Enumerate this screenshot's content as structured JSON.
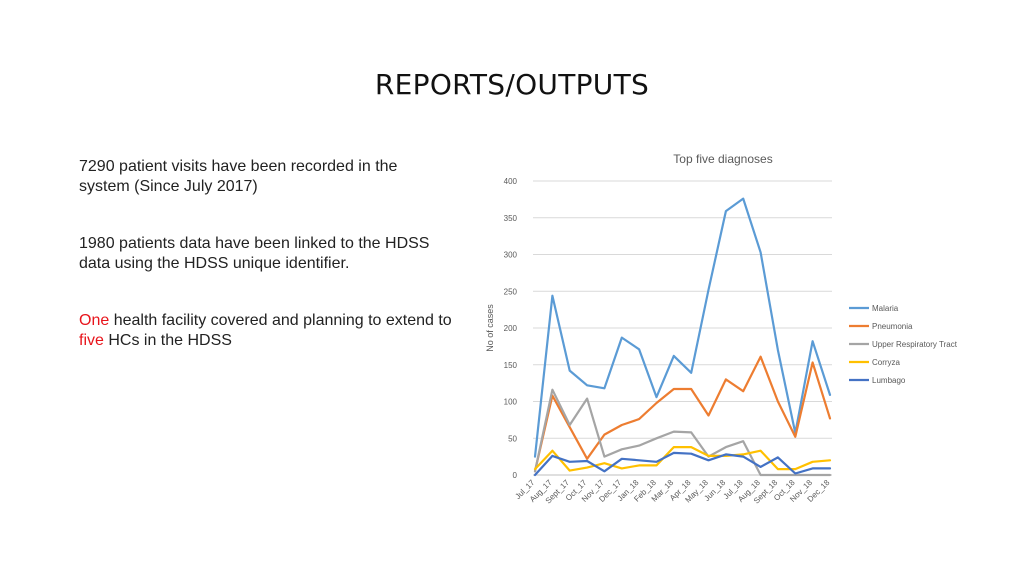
{
  "slide": {
    "title": "REPORTS/OUTPUTS"
  },
  "paragraphs": [
    {
      "parts": [
        {
          "text": "7290 patient visits have been recorded in the system (Since July 2017)"
        }
      ]
    },
    {
      "parts": [
        {
          "text": "1980 patients data have been linked to the HDSS data using the HDSS unique identifier."
        }
      ]
    },
    {
      "parts": [
        {
          "text": "One",
          "highlight": true
        },
        {
          "text": " health facility covered and planning to extend to "
        },
        {
          "text": "five",
          "highlight": true
        },
        {
          "text": " HCs in the HDSS"
        }
      ]
    }
  ],
  "colors": {
    "highlight": "#e8141b"
  },
  "chart_data": {
    "type": "line",
    "title": "Top five diagnoses",
    "xlabel": "",
    "ylabel": "No of cases",
    "ylim": [
      0,
      400
    ],
    "yticks": [
      0,
      50,
      100,
      150,
      200,
      250,
      300,
      350,
      400
    ],
    "grid": true,
    "legend_position": "right",
    "categories": [
      "Jul_17",
      "Aug_17",
      "Sept_17",
      "Oct_17",
      "Nov_17",
      "Dec_17",
      "Jan_18",
      "Feb_18",
      "Mar_18",
      "Apr_18",
      "May_18",
      "Jun_18",
      "Jul_18",
      "Aug_18",
      "Sept_18",
      "Oct_18",
      "Nov_18",
      "Dec_18"
    ],
    "series": [
      {
        "name": "Malaria",
        "color": "#5b9bd5",
        "values": [
          25,
          244,
          142,
          122,
          118,
          187,
          171,
          106,
          162,
          139,
          252,
          359,
          376,
          303,
          170,
          57,
          182,
          109
        ]
      },
      {
        "name": "Pneumonia",
        "color": "#ed7d31",
        "values": [
          5,
          108,
          65,
          22,
          55,
          68,
          76,
          98,
          117,
          117,
          81,
          130,
          114,
          161,
          100,
          52,
          153,
          77
        ]
      },
      {
        "name": "Upper Respiratory Tract",
        "color": "#a5a5a5",
        "values": [
          5,
          116,
          68,
          104,
          25,
          35,
          40,
          50,
          59,
          58,
          25,
          38,
          46,
          0,
          0,
          0,
          0,
          0
        ]
      },
      {
        "name": "Corryza",
        "color": "#ffc000",
        "values": [
          8,
          33,
          6,
          10,
          16,
          9,
          13,
          13,
          38,
          38,
          26,
          26,
          28,
          33,
          8,
          8,
          18,
          20
        ]
      },
      {
        "name": "Lumbago",
        "color": "#4472c4",
        "values": [
          0,
          26,
          18,
          19,
          5,
          22,
          20,
          18,
          30,
          29,
          20,
          28,
          25,
          11,
          24,
          2,
          9,
          9
        ]
      }
    ]
  }
}
